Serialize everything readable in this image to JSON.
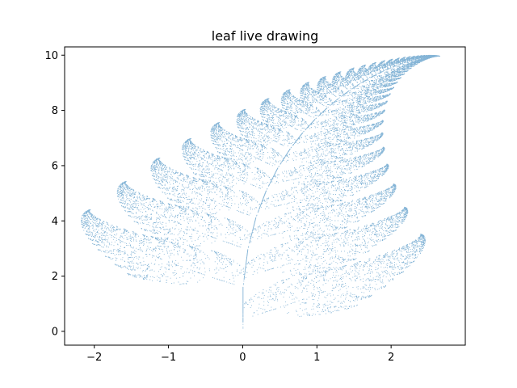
{
  "chart_data": {
    "type": "scatter",
    "title": "leaf live drawing",
    "xlabel": "",
    "ylabel": "",
    "xlim": [
      -2.4,
      3.0
    ],
    "ylim": [
      -0.5,
      10.3
    ],
    "x_ticks": [
      {
        "value": -2,
        "label": "−2"
      },
      {
        "value": -1,
        "label": "−1"
      },
      {
        "value": 0,
        "label": "0"
      },
      {
        "value": 1,
        "label": "1"
      },
      {
        "value": 2,
        "label": "2"
      }
    ],
    "y_ticks": [
      {
        "value": 0,
        "label": "0"
      },
      {
        "value": 2,
        "label": "2"
      },
      {
        "value": 4,
        "label": "4"
      },
      {
        "value": 6,
        "label": "6"
      },
      {
        "value": 8,
        "label": "8"
      },
      {
        "value": 10,
        "label": "10"
      }
    ],
    "grid": false,
    "legend": "none",
    "marker_color": "#1f77b4",
    "series": [
      {
        "generator": "barnsley-fern",
        "point_count": 20000,
        "transforms": [
          {
            "a": 0.0,
            "b": 0.0,
            "c": 0.0,
            "d": 0.16,
            "e": 0.0,
            "f": 0.0,
            "p": 0.01
          },
          {
            "a": 0.85,
            "b": 0.04,
            "c": -0.04,
            "d": 0.85,
            "e": 0.0,
            "f": 1.6,
            "p": 0.85
          },
          {
            "a": 0.2,
            "b": -0.26,
            "c": 0.23,
            "d": 0.22,
            "e": 0.0,
            "f": 1.6,
            "p": 0.07
          },
          {
            "a": -0.15,
            "b": 0.28,
            "c": 0.26,
            "d": 0.24,
            "e": 0.0,
            "f": 0.44,
            "p": 0.07
          }
        ]
      }
    ]
  }
}
